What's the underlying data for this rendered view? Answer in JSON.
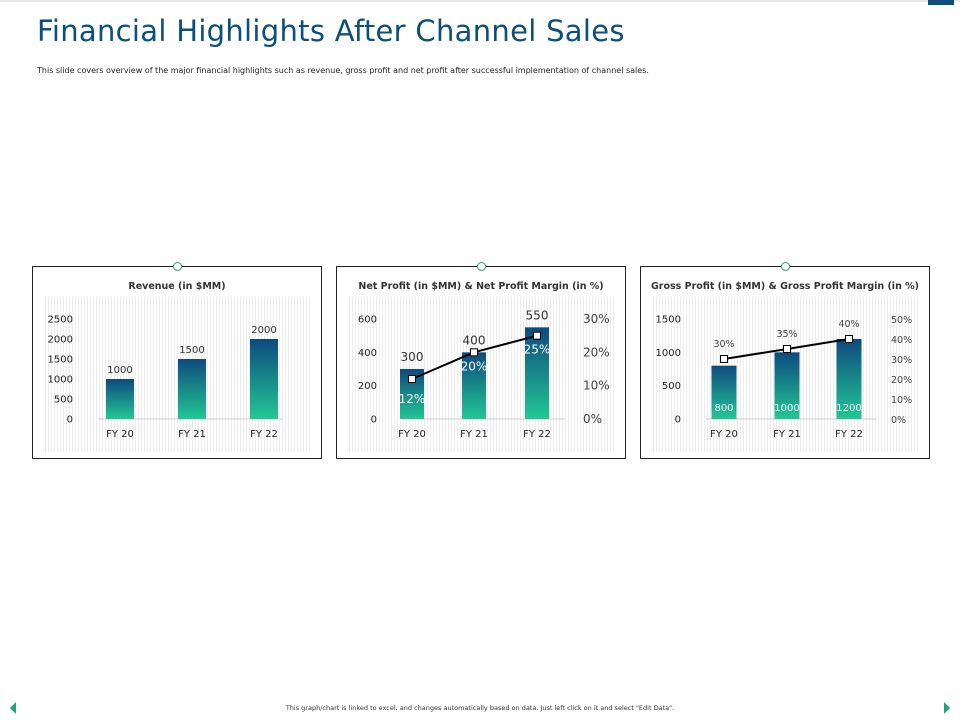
{
  "title": "Financial Highlights After Channel Sales",
  "subtitle": "This slide covers overview of the major financial highlights such as revenue, gross profit and net profit after successful implementation of channel sales.",
  "footer": "This graph/chart is linked to excel, and changes automatically based on data. Just left click on it and select \"Edit Data\".",
  "colors": {
    "title": "#0b4f7a",
    "bar_top": "#0d4a7e",
    "bar_bottom": "#22c795",
    "line": "#000000"
  },
  "chart_data": [
    {
      "type": "bar",
      "title": "Revenue (in $MM)",
      "categories": [
        "FY 20",
        "FY 21",
        "FY 22"
      ],
      "values": [
        1000,
        1500,
        2000
      ],
      "value_labels": [
        "1000",
        "1500",
        "2000"
      ],
      "ylim": [
        0,
        2500
      ],
      "yticks": [
        "0",
        "500",
        "1000",
        "1500",
        "2000",
        "2500"
      ],
      "label_position": "above"
    },
    {
      "type": "bar+line",
      "title": "Net Profit (in $MM) & Net Profit Margin (in %)",
      "categories": [
        "FY 20",
        "FY 21",
        "FY 22"
      ],
      "values": [
        300,
        400,
        550
      ],
      "value_labels": [
        "300",
        "400",
        "550"
      ],
      "ylim": [
        0,
        600
      ],
      "yticks": [
        "0",
        "200",
        "400",
        "600"
      ],
      "line_values": [
        12,
        20,
        25
      ],
      "line_labels": [
        "12%",
        "20%",
        "25%"
      ],
      "y2lim": [
        0,
        30
      ],
      "y2ticks": [
        "0%",
        "10%",
        "20%",
        "30%"
      ],
      "label_position": "above",
      "line_label_position": "inside-bar"
    },
    {
      "type": "bar+line",
      "title": "Gross Profit (in $MM) & Gross Profit Margin (in %)",
      "categories": [
        "FY 20",
        "FY 21",
        "FY 22"
      ],
      "values": [
        800,
        1000,
        1200
      ],
      "value_labels": [
        "800",
        "1000",
        "1200"
      ],
      "ylim": [
        0,
        1500
      ],
      "yticks": [
        "0",
        "500",
        "1000",
        "1500"
      ],
      "line_values": [
        30,
        35,
        40
      ],
      "line_labels": [
        "30%",
        "35%",
        "40%"
      ],
      "y2lim": [
        0,
        50
      ],
      "y2ticks": [
        "0%",
        "10%",
        "20%",
        "30%",
        "40%",
        "50%"
      ],
      "label_position": "inside-bottom",
      "line_label_position": "above"
    }
  ]
}
